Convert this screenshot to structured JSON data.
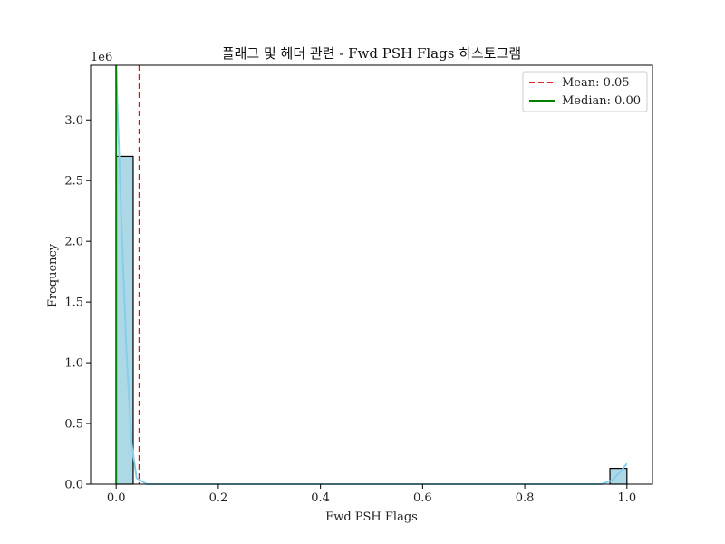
{
  "chart_data": {
    "type": "bar",
    "title": "플래그 및 헤더 관련 - Fwd PSH Flags 히스토그램",
    "xlabel": "Fwd PSH Flags",
    "ylabel": "Frequency",
    "y_multiplier": "1e6",
    "xlim": [
      -0.05,
      1.05
    ],
    "ylim": [
      0,
      3.45
    ],
    "xticks": [
      "0.0",
      "0.2",
      "0.4",
      "0.6",
      "0.8",
      "1.0"
    ],
    "yticks": [
      "0.0",
      "0.5",
      "1.0",
      "1.5",
      "2.0",
      "2.5",
      "3.0"
    ],
    "bin_width": 0.0333,
    "bins": [
      {
        "x0": 0.0,
        "value": 2.7
      },
      {
        "x0": 0.9667,
        "value": 0.13
      }
    ],
    "kde": [
      {
        "x": 0.0,
        "y": 3.42
      },
      {
        "x": 0.01,
        "y": 2.2
      },
      {
        "x": 0.02,
        "y": 1.1
      },
      {
        "x": 0.03,
        "y": 0.35
      },
      {
        "x": 0.04,
        "y": 0.05
      },
      {
        "x": 0.06,
        "y": 0.0
      },
      {
        "x": 0.95,
        "y": 0.0
      },
      {
        "x": 0.97,
        "y": 0.03
      },
      {
        "x": 0.985,
        "y": 0.09
      },
      {
        "x": 1.0,
        "y": 0.17
      }
    ],
    "mean": 0.0455,
    "median": 0.0,
    "legend": {
      "position": "top-right",
      "entries": [
        {
          "label": "Mean: 0.05",
          "color": "#d62728",
          "style": "dashed"
        },
        {
          "label": "Median: 0.00",
          "color": "#008000",
          "style": "solid"
        }
      ]
    },
    "colors": {
      "bar_fill": "#add8e6",
      "bar_edge": "#000000",
      "kde": "#87ceeb",
      "mean_line": "#ff0000",
      "median_line": "#008000"
    }
  }
}
